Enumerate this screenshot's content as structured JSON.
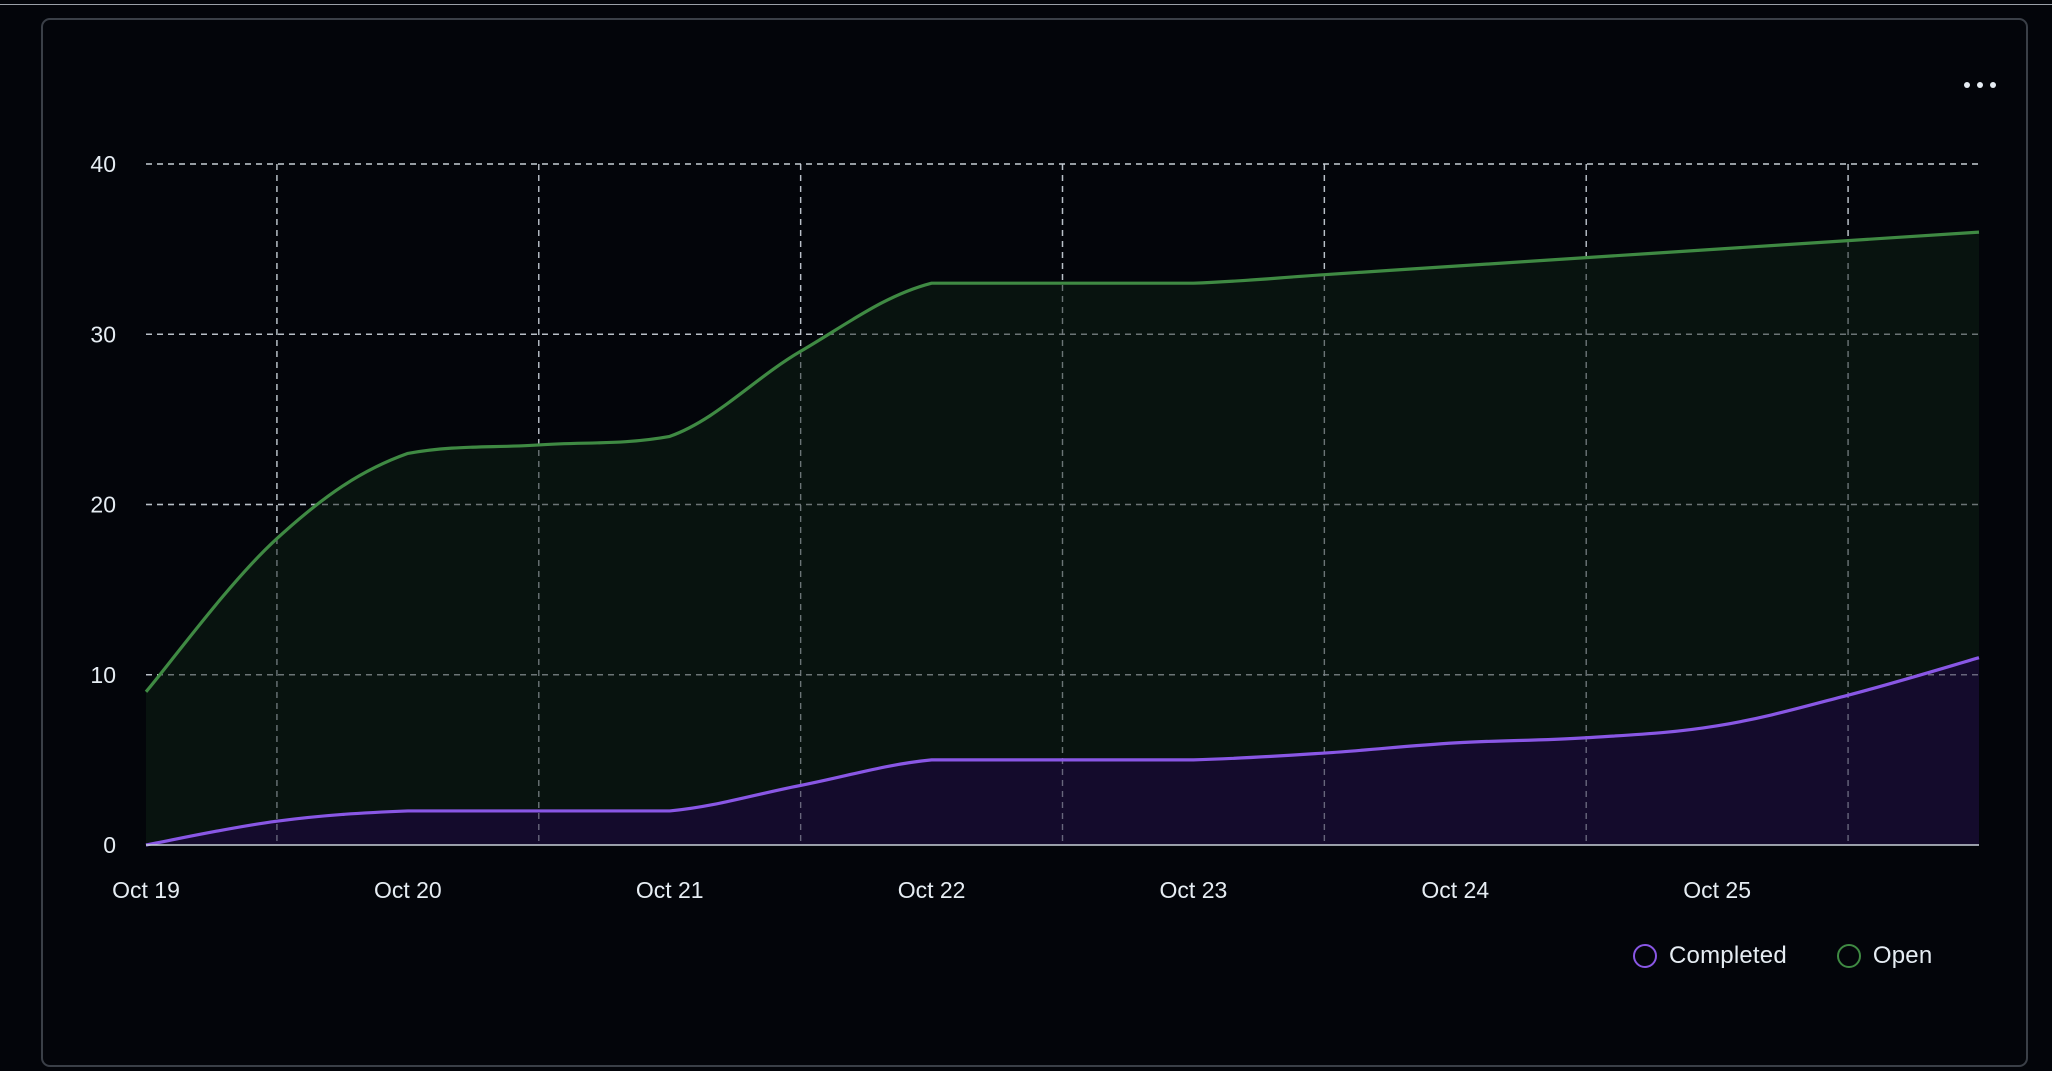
{
  "toolbar": {
    "more_icon": "kebab-horizontal-icon"
  },
  "colors": {
    "background": "#03050a",
    "grid": "#c9d1d9",
    "axis_text": "#e6edf3",
    "completed_line": "#8957e5",
    "completed_fill": "#140b2c",
    "open_line": "#3f8a43",
    "open_fill": "#09150f"
  },
  "chart_data": {
    "type": "area",
    "stacked": false,
    "x": [
      "Oct 19",
      "Oct 19.5",
      "Oct 20",
      "Oct 20.5",
      "Oct 21",
      "Oct 21.5",
      "Oct 22",
      "Oct 22.5",
      "Oct 23",
      "Oct 23.5",
      "Oct 24",
      "Oct 24.5",
      "Oct 25",
      "Oct 25.5",
      "Oct 26"
    ],
    "x_tick_labels": [
      "Oct 19",
      "Oct 20",
      "Oct 21",
      "Oct 22",
      "Oct 23",
      "Oct 24",
      "Oct 25"
    ],
    "y_ticks": [
      0,
      10,
      20,
      30,
      40
    ],
    "ylim": [
      0,
      40
    ],
    "grid": true,
    "legend_position": "bottom-right",
    "series": [
      {
        "name": "Open",
        "values": [
          9,
          18,
          23,
          23.5,
          24,
          29,
          33,
          33,
          33,
          33.5,
          34,
          34.5,
          35,
          35.5,
          36
        ]
      },
      {
        "name": "Completed",
        "values": [
          0,
          1.4,
          2,
          2,
          2,
          3.5,
          5,
          5,
          5,
          5.4,
          6,
          6.3,
          7,
          8.8,
          11
        ]
      }
    ],
    "legend": [
      {
        "name": "Completed",
        "color": "#8957e5"
      },
      {
        "name": "Open",
        "color": "#3f8a43"
      }
    ]
  }
}
